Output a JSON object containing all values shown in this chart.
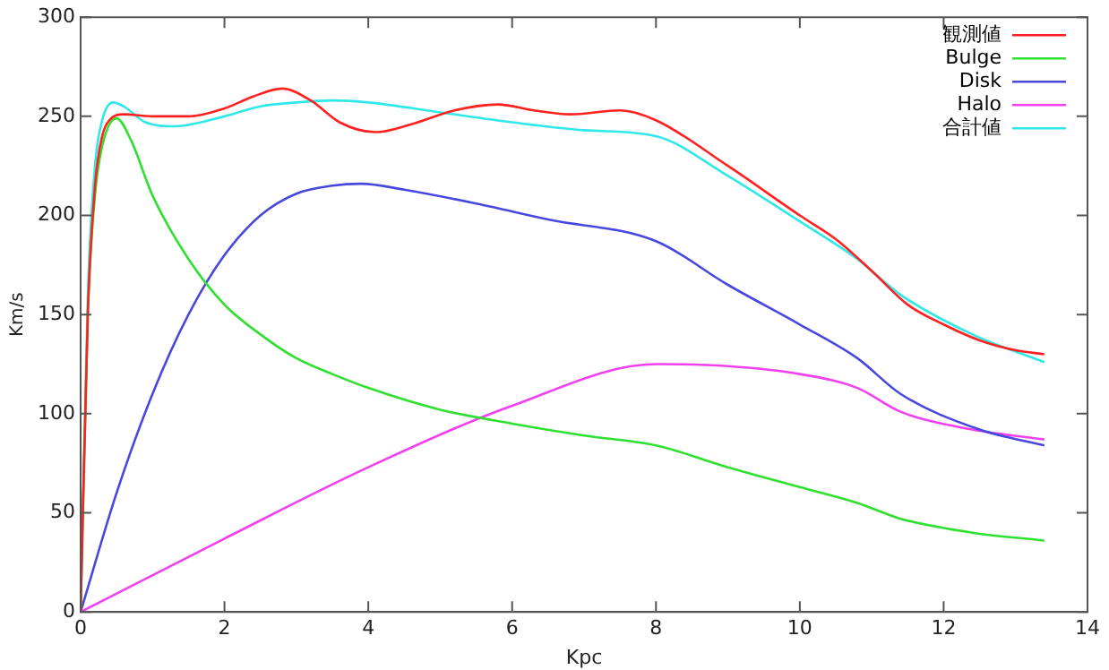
{
  "chart_data": {
    "type": "line",
    "xlabel": "Kpc",
    "ylabel": "Km/s",
    "xlim": [
      0,
      14
    ],
    "xticks": [
      0,
      2,
      4,
      6,
      8,
      10,
      12,
      14
    ],
    "ylim": [
      0,
      300
    ],
    "yticks": [
      0,
      50,
      100,
      150,
      200,
      250,
      300
    ],
    "grid": false,
    "legend": "top right",
    "marker": "none",
    "line_style": "solid",
    "series": [
      {
        "name": "観測値",
        "color": "#ff2020",
        "x": [
          0,
          0.1,
          0.2,
          0.3,
          0.4,
          0.6,
          1.0,
          1.5,
          2.0,
          2.4,
          2.8,
          3.2,
          3.6,
          4.1,
          4.6,
          5.2,
          5.8,
          6.3,
          6.8,
          7.5,
          8.0,
          9.0,
          10.0,
          10.5,
          11.0,
          11.5,
          12.0,
          12.5,
          13.0,
          13.4
        ],
        "values": [
          0,
          150,
          215,
          240,
          248,
          251,
          250,
          250,
          254,
          260,
          264,
          258,
          247,
          242,
          246,
          253,
          256,
          253,
          251,
          253,
          248,
          225,
          200,
          188,
          172,
          155,
          145,
          137,
          132,
          130
        ]
      },
      {
        "name": "Bulge",
        "color": "#30e030",
        "x": [
          0,
          0.1,
          0.2,
          0.3,
          0.5,
          0.7,
          1.0,
          1.5,
          2.0,
          2.5,
          3.0,
          3.5,
          4.0,
          5.0,
          6.0,
          7.0,
          8.0,
          9.0,
          10.0,
          10.8,
          11.4,
          12.4,
          13.4
        ],
        "values": [
          0,
          150,
          210,
          235,
          249,
          238,
          210,
          178,
          155,
          140,
          128,
          120,
          113,
          102,
          95,
          89,
          84,
          73,
          63,
          55,
          47,
          40,
          36
        ]
      },
      {
        "name": "Disk",
        "color": "#4848e0",
        "x": [
          0,
          0.5,
          1.0,
          1.5,
          2.0,
          2.5,
          3.0,
          3.5,
          3.9,
          4.5,
          5.5,
          6.5,
          8.0,
          9.0,
          10.0,
          10.8,
          11.4,
          12.5,
          13.4
        ],
        "values": [
          0,
          60,
          110,
          150,
          180,
          200,
          211,
          215,
          216,
          213,
          206,
          198,
          187,
          165,
          145,
          128,
          110,
          92,
          84
        ]
      },
      {
        "name": "Halo",
        "color": "#f040f0",
        "x": [
          0,
          2,
          4,
          6,
          8,
          9,
          10,
          10.8,
          11.4,
          12.4,
          13.4
        ],
        "values": [
          0,
          37,
          73,
          104,
          125,
          124,
          120,
          113,
          101,
          92,
          87
        ]
      },
      {
        "name": "合計値",
        "color": "#30e8e8",
        "x": [
          0,
          0.1,
          0.2,
          0.3,
          0.45,
          0.6,
          0.9,
          1.3,
          2.0,
          2.5,
          3.0,
          3.5,
          4.0,
          5.0,
          6.0,
          7.0,
          8.0,
          9.0,
          10.0,
          10.8,
          11.4,
          12.4,
          13.4
        ],
        "values": [
          0,
          160,
          225,
          248,
          257,
          255,
          247,
          245,
          250,
          255,
          257,
          258,
          257,
          252,
          247,
          243,
          240,
          220,
          197,
          178,
          160,
          140,
          126
        ]
      }
    ]
  }
}
